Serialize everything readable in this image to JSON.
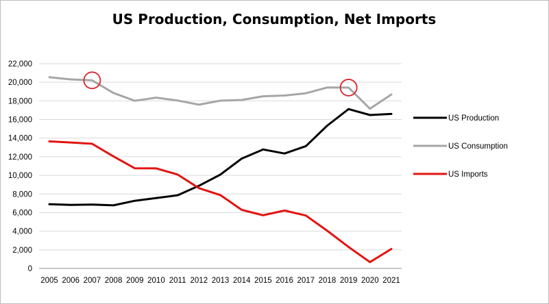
{
  "chart_data": {
    "type": "line",
    "title": "US Production, Consumption, Net Imports",
    "xlabel": "",
    "ylabel": "",
    "x": [
      "2005",
      "2006",
      "2007",
      "2008",
      "2009",
      "2010",
      "2011",
      "2012",
      "2013",
      "2014",
      "2015",
      "2016",
      "2017",
      "2018",
      "2019",
      "2020",
      "2021"
    ],
    "ylim": [
      0,
      22000
    ],
    "yticks": [
      "0",
      "2,000",
      "4,000",
      "6,000",
      "8,000",
      "10,000",
      "12,000",
      "14,000",
      "16,000",
      "18,000",
      "20,000",
      "22,000"
    ],
    "grid": true,
    "legend_position": "right",
    "series": [
      {
        "name": "US Production",
        "color": "#000000",
        "values": [
          6900,
          6830,
          6860,
          6780,
          7270,
          7560,
          7860,
          8880,
          10080,
          11800,
          12780,
          12350,
          13140,
          15340,
          17120,
          16480,
          16600
        ]
      },
      {
        "name": "US Consumption",
        "color": "#a6a6a6",
        "values": [
          20550,
          20310,
          20210,
          18850,
          18010,
          18350,
          18040,
          17590,
          18030,
          18100,
          18500,
          18580,
          18820,
          19440,
          19430,
          17160,
          18690
        ]
      },
      {
        "name": "US  Imports",
        "color": "#e3130f",
        "values": [
          13650,
          13530,
          13390,
          12040,
          10760,
          10750,
          10090,
          8620,
          7880,
          6290,
          5710,
          6220,
          5680,
          4050,
          2300,
          680,
          2090
        ]
      }
    ],
    "annotations": [
      {
        "type": "circle",
        "color": "#d9262b",
        "x": "2007",
        "y": 20210
      },
      {
        "type": "circle",
        "color": "#d9262b",
        "x": "2019",
        "y": 19430
      }
    ]
  }
}
